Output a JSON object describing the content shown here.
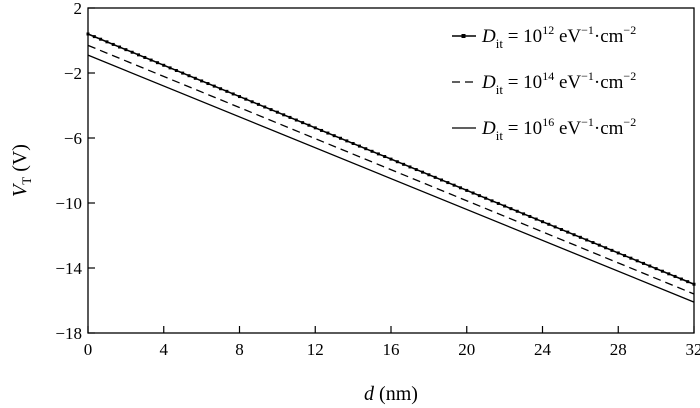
{
  "chart_data": {
    "type": "line",
    "xlabel": {
      "var": "d",
      "unit": " (nm)"
    },
    "ylabel": {
      "var": "V",
      "sub": "T",
      "unit": " (V)"
    },
    "xlim": [
      0,
      32
    ],
    "ylim": [
      -18,
      2
    ],
    "xticks": [
      0,
      4,
      8,
      12,
      16,
      20,
      24,
      28,
      32
    ],
    "yticks": [
      2,
      -2,
      -6,
      -10,
      -14,
      -18
    ],
    "grid": false,
    "legend_position": "top-right",
    "series": [
      {
        "name": "D_it = 10^12 eV^-1·cm^-2",
        "label": {
          "var": "D",
          "sub": "it",
          "base": " = 10",
          "exp": "12",
          "unit": " eV",
          "unit_exp1": "−1",
          "unit_mid": "·cm",
          "unit_exp2": "−2"
        },
        "style": "dotted-markers",
        "x": [
          0,
          32
        ],
        "y": [
          0.4,
          -15.0
        ]
      },
      {
        "name": "D_it = 10^14 eV^-1·cm^-2",
        "label": {
          "var": "D",
          "sub": "it",
          "base": " = 10",
          "exp": "14",
          "unit": " eV",
          "unit_exp1": "−1",
          "unit_mid": "·cm",
          "unit_exp2": "−2"
        },
        "style": "dashed",
        "x": [
          0,
          32
        ],
        "y": [
          -0.3,
          -15.6
        ]
      },
      {
        "name": "D_it = 10^16 eV^-1·cm^-2",
        "label": {
          "var": "D",
          "sub": "it",
          "base": " = 10",
          "exp": "16",
          "unit": " eV",
          "unit_exp1": "−1",
          "unit_mid": "·cm",
          "unit_exp2": "−2"
        },
        "style": "solid",
        "x": [
          0,
          32
        ],
        "y": [
          -0.9,
          -16.1
        ]
      }
    ]
  }
}
